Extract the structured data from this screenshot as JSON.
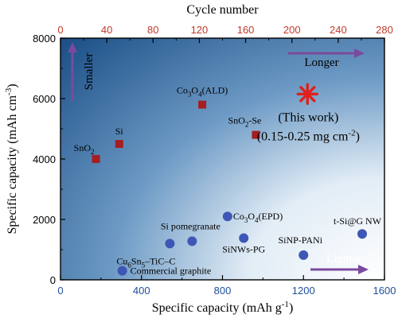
{
  "chart_data": {
    "type": "scatter",
    "x_bottom": {
      "label": "Specific capacity (mAh g",
      "label_sup": "-1",
      "label_tail": ")",
      "range": [
        0,
        1600
      ],
      "ticks": [
        "0",
        "400",
        "800",
        "1200",
        "1600"
      ],
      "tick_values": [
        0,
        400,
        800,
        1200,
        1600
      ],
      "color": "#1f4e9a"
    },
    "x_top": {
      "label": "Cycle number",
      "range": [
        0,
        280
      ],
      "ticks": [
        "0",
        "40",
        "80",
        "120",
        "160",
        "200",
        "240",
        "280"
      ],
      "tick_values": [
        0,
        40,
        80,
        120,
        160,
        200,
        240,
        280
      ],
      "color": "#c0392b"
    },
    "y": {
      "label": "Specific capacity (mAh cm",
      "label_sup": "-3",
      "label_tail": ")",
      "range": [
        0,
        8000
      ],
      "ticks": [
        "0",
        "2000",
        "4000",
        "6000",
        "8000"
      ],
      "tick_values": [
        0,
        2000,
        4000,
        6000,
        8000
      ]
    },
    "series": [
      {
        "marker": "square",
        "color": "#a51e22",
        "points": [
          {
            "x": 175,
            "y": 4000,
            "label": "SnO",
            "sub": "2",
            "suffix": ""
          },
          {
            "x": 290,
            "y": 4500,
            "label": "Si",
            "sub": "",
            "suffix": ""
          },
          {
            "x": 700,
            "y": 5800,
            "label": "Co",
            "sub": "3",
            "mid": "O",
            "sub2": "4",
            "suffix": "(ALD)"
          },
          {
            "x": 965,
            "y": 4800,
            "label": "SnO",
            "sub": "2",
            "suffix": "-Se"
          }
        ]
      },
      {
        "marker": "circle",
        "color": "#3e56b5",
        "points": [
          {
            "x": 305,
            "y": 300,
            "label": "Commercial graphite"
          },
          {
            "x": 540,
            "y": 1200,
            "label": "Cu",
            "sub": "6",
            "mid": "Sn",
            "sub2": "5",
            "suffix": "–TiC–C"
          },
          {
            "x": 650,
            "y": 1280,
            "label": "Si pomegranate"
          },
          {
            "x": 825,
            "y": 2100,
            "label": "Co",
            "sub": "3",
            "mid": "O",
            "sub2": "4",
            "suffix": "(EPD)"
          },
          {
            "x": 905,
            "y": 1380,
            "label": "SiNWs-PG"
          },
          {
            "x": 1200,
            "y": 820,
            "label": "SiNP-PANi"
          },
          {
            "x": 1490,
            "y": 1520,
            "label": "t-Si@G NW"
          }
        ]
      }
    ],
    "highlight": {
      "x": 1220,
      "y": 6150,
      "marker": "asterisk",
      "color": "#e0201b",
      "line1": "(This work)",
      "line2": "(0.15-0.25 mg cm",
      "line2_sup": "-2",
      "line2_tail": ")"
    },
    "arrows": {
      "up_label": "Smaller",
      "right_top_label": "Longer",
      "right_bottom_label": "Lighter",
      "color": "#7b4a9e"
    },
    "grid": false
  }
}
